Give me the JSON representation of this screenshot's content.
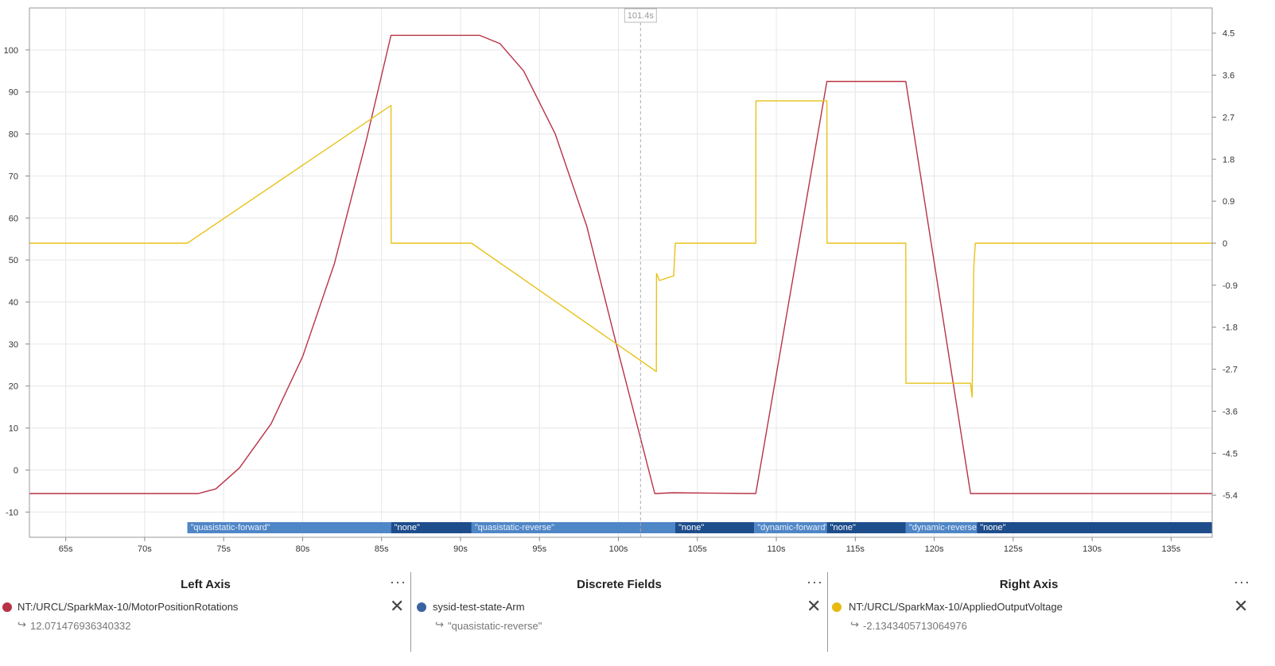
{
  "chart_data": {
    "type": "line",
    "x_unit": "s",
    "xlim": [
      62.7,
      137.6
    ],
    "x_ticks": [
      65,
      70,
      75,
      80,
      85,
      90,
      95,
      100,
      105,
      110,
      115,
      120,
      125,
      130,
      135
    ],
    "x_tick_labels": [
      "65s",
      "70s",
      "75s",
      "80s",
      "85s",
      "90s",
      "95s",
      "100s",
      "105s",
      "110s",
      "115s",
      "120s",
      "125s",
      "130s",
      "135s"
    ],
    "left_axis": {
      "ylim": [
        -16,
        110
      ],
      "ticks": [
        100,
        90,
        80,
        70,
        60,
        50,
        40,
        30,
        20,
        10,
        0,
        -10
      ],
      "tick_labels": [
        "100",
        "90",
        "80",
        "70",
        "60",
        "50",
        "40",
        "30",
        "20",
        "10",
        "0",
        "-10"
      ]
    },
    "right_axis": {
      "ylim": [
        -6.3,
        5.04
      ],
      "ticks": [
        4.5,
        3.6,
        2.7,
        1.8,
        0.9,
        0,
        -0.9,
        -1.8,
        -2.7,
        -3.6,
        -4.5,
        -5.4
      ],
      "tick_labels": [
        "4.5",
        "3.6",
        "2.7",
        "1.8",
        "0.9",
        "0",
        "-0.9",
        "-1.8",
        "-2.7",
        "-3.6",
        "-4.5",
        "-5.4"
      ]
    },
    "grid": true,
    "cursor": {
      "x": 101.4,
      "label": "101.4s"
    },
    "series": [
      {
        "name": "NT:/URCL/SparkMax-10/MotorPositionRotations",
        "axis": "left",
        "color": "#b83245",
        "x": [
          62.7,
          73.4,
          74.5,
          76.0,
          78.0,
          80.0,
          82.0,
          84.0,
          85.6,
          91.2,
          92.5,
          94.0,
          96.0,
          98.0,
          100.0,
          102.3,
          103.5,
          108.7,
          113.2,
          118.2,
          122.3,
          123.0,
          137.6
        ],
        "y": [
          -5.6,
          -5.6,
          -4.5,
          0.5,
          11.0,
          27.0,
          49.0,
          78.0,
          103.5,
          103.5,
          101.5,
          95.0,
          80.0,
          58.0,
          28.0,
          -5.6,
          -5.4,
          -5.6,
          92.5,
          92.5,
          -5.6,
          -5.6,
          -5.6
        ]
      },
      {
        "name": "NT:/URCL/SparkMax-10/AppliedOutputVoltage",
        "axis": "right",
        "color": "#e8c21a",
        "x": [
          62.7,
          72.7,
          85.6,
          85.61,
          90.7,
          102.4,
          102.41,
          102.6,
          103.5,
          103.6,
          108.7,
          108.71,
          113.2,
          113.21,
          118.2,
          118.21,
          122.3,
          122.4,
          122.5,
          122.6,
          137.6
        ],
        "y": [
          0,
          0,
          2.95,
          0,
          0,
          -2.75,
          -0.65,
          -0.8,
          -0.7,
          0,
          0,
          3.05,
          3.05,
          0,
          0,
          -3.0,
          -3.0,
          -3.3,
          -0.55,
          0,
          0
        ]
      }
    ],
    "discrete": {
      "name": "sysid-test-state-Arm",
      "segments": [
        {
          "start": 72.7,
          "end": 85.6,
          "label": "\"quasistatic-forward\"",
          "shade": "light"
        },
        {
          "start": 85.6,
          "end": 90.7,
          "label": "\"none\"",
          "shade": "dark"
        },
        {
          "start": 90.7,
          "end": 103.6,
          "label": "\"quasistatic-reverse\"",
          "shade": "light"
        },
        {
          "start": 103.6,
          "end": 108.6,
          "label": "\"none\"",
          "shade": "dark"
        },
        {
          "start": 108.6,
          "end": 113.2,
          "label": "\"dynamic-forward\"",
          "shade": "light"
        },
        {
          "start": 113.2,
          "end": 118.2,
          "label": "\"none\"",
          "shade": "dark"
        },
        {
          "start": 118.2,
          "end": 122.7,
          "label": "\"dynamic-reverse\"",
          "shade": "light"
        },
        {
          "start": 122.7,
          "end": 137.6,
          "label": "\"none\"",
          "shade": "dark"
        }
      ]
    }
  },
  "colors": {
    "light_seg": "#4f86c6",
    "dark_seg": "#1e4d8c",
    "grid": "#e6e6e6",
    "axis": "#888888"
  },
  "legend": {
    "left": {
      "title": "Left Axis",
      "menu": "···",
      "field": "NT:/URCL/SparkMax-10/MotorPositionRotations",
      "value": "12.071476936340332",
      "color": "#b83245"
    },
    "discrete": {
      "title": "Discrete Fields",
      "menu": "···",
      "field": "sysid-test-state-Arm",
      "value": "\"quasistatic-reverse\"",
      "color": "#3a62a0"
    },
    "right": {
      "title": "Right Axis",
      "menu": "···",
      "field": "NT:/URCL/SparkMax-10/AppliedOutputVoltage",
      "value": "-2.1343405713064976",
      "color": "#e8b90f"
    },
    "arrow_glyph": "↪",
    "close_glyph": "✕"
  }
}
